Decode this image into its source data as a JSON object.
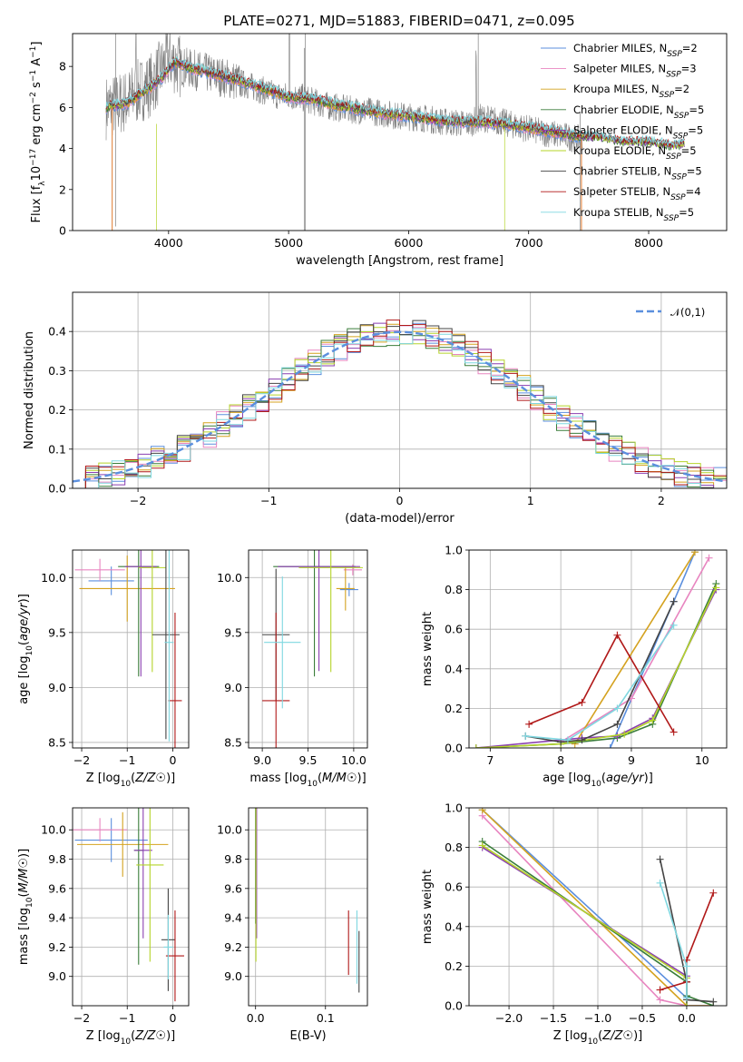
{
  "figure_title": "PLATE=0271, MJD=51883, FIBERID=0471, z=0.095",
  "colors": [
    "#5b8fde",
    "#e885c0",
    "#d4a21f",
    "#3a7d3a",
    "#8a3fb0",
    "#b5d42a",
    "#444444",
    "#b01818",
    "#7fd7e0"
  ],
  "chart_data": [
    {
      "id": "spectrum",
      "type": "line",
      "title": "PLATE=0271, MJD=51883, FIBERID=0471, z=0.095",
      "xlabel": "wavelength [Angstrom, rest frame]",
      "ylabel": "Flux [f_λ 10^-17 erg cm^-2 s^-1 A^-1]",
      "xlim": [
        3200,
        8650
      ],
      "ylim": [
        0,
        9.6
      ],
      "xticks": [
        4000,
        5000,
        6000,
        7000,
        8000
      ],
      "yticks": [
        0,
        2,
        4,
        6,
        8
      ],
      "grid": false,
      "legend_placement": "top-right",
      "legend": [
        "Chabrier MILES, N_SSP=2",
        "Salpeter MILES, N_SSP=3",
        "Kroupa MILES, N_SSP=2",
        "Chabrier ELODIE, N_SSP=5",
        "Salpeter ELODIE, N_SSP=5",
        "Kroupa ELODIE, N_SSP=5",
        "Chabrier STELIB, N_SSP=5",
        "Salpeter STELIB, N_SSP=4",
        "Kroupa STELIB, N_SSP=5"
      ],
      "observed_continuum": {
        "x": [
          3480,
          3550,
          3650,
          3750,
          3850,
          3950,
          4000,
          4100,
          4300,
          4500,
          4700,
          4900,
          5100,
          5300,
          5500,
          5700,
          5900,
          6100,
          6300,
          6500,
          6600,
          6700,
          6900,
          7100,
          7300,
          7450
        ],
        "y": [
          6.0,
          6.1,
          6.3,
          6.8,
          7.1,
          7.9,
          8.4,
          8.0,
          7.7,
          7.4,
          7.0,
          6.6,
          6.5,
          6.1,
          5.9,
          5.8,
          5.6,
          5.5,
          5.3,
          5.2,
          5.5,
          5.4,
          5.1,
          4.8,
          4.6,
          4.4
        ]
      },
      "model_continuum": {
        "x": [
          3480,
          3550,
          3650,
          3750,
          3850,
          3950,
          4050,
          4200,
          4400,
          4600,
          4800,
          5000,
          5200,
          5400,
          5600,
          5800,
          6000,
          6200,
          6400,
          6600,
          6800,
          7000,
          7200,
          7400,
          7600,
          7800,
          8000,
          8200,
          8300
        ],
        "y": [
          6.0,
          6.1,
          6.2,
          6.6,
          7.0,
          7.5,
          8.2,
          7.9,
          7.6,
          7.3,
          6.9,
          6.5,
          6.4,
          6.1,
          5.9,
          5.7,
          5.6,
          5.4,
          5.3,
          5.3,
          5.2,
          5.0,
          4.8,
          4.6,
          4.5,
          4.3,
          4.3,
          4.1,
          4.2
        ]
      }
    },
    {
      "id": "residuals",
      "type": "line",
      "xlabel": "(data-model)/error",
      "ylabel": "Normed distribution",
      "xlim": [
        -2.5,
        2.5
      ],
      "ylim": [
        0,
        0.5
      ],
      "xticks": [
        -2,
        -1,
        0,
        1,
        2
      ],
      "yticks": [
        0.0,
        0.1,
        0.2,
        0.3,
        0.4
      ],
      "grid": true,
      "legend_placement": "top-right",
      "legend": [
        "𝒩(0,1)"
      ],
      "normal_curve": {
        "mean": 0,
        "sd": 1
      },
      "histogram_bin_width": 0.1
    },
    {
      "id": "age_vs_Z",
      "type": "scatter",
      "xlabel": "Z [log10(Z/Z☉)]",
      "ylabel": "age [log10(age/yr)]",
      "xlim": [
        -2.2,
        0.35
      ],
      "ylim": [
        8.45,
        10.25
      ],
      "xticks": [
        -2,
        -1,
        0
      ],
      "yticks": [
        8.5,
        9.0,
        9.5,
        10.0
      ],
      "grid": true,
      "points": [
        {
          "x": -1.35,
          "y": 9.97,
          "xerr": 0.5,
          "yerr": 0.13
        },
        {
          "x": -1.6,
          "y": 10.07,
          "xerr": 0.55,
          "yerr": 0.1
        },
        {
          "x": -1.0,
          "y": 9.9,
          "xerr": 1.05,
          "yerr": 0.3
        },
        {
          "x": -0.75,
          "y": 10.1,
          "xerr": 0.45,
          "yerr": 1.0
        },
        {
          "x": -0.7,
          "y": 10.1,
          "xerr": 0.35,
          "yerr": 1.0
        },
        {
          "x": -0.45,
          "y": 10.09,
          "xerr": 0.3,
          "yerr": 0.95
        },
        {
          "x": -0.15,
          "y": 9.48,
          "xerr": 0.3,
          "yerr": 0.95
        },
        {
          "x": 0.05,
          "y": 8.88,
          "xerr": 0.15,
          "yerr": 0.8
        },
        {
          "x": -0.08,
          "y": 9.41,
          "xerr": 0.1,
          "yerr": 0.9
        }
      ]
    },
    {
      "id": "age_vs_mass",
      "type": "scatter",
      "xlabel": "mass [log10(M/M☉)]",
      "ylabel": "",
      "xlim": [
        8.85,
        10.15
      ],
      "ylim": [
        8.45,
        10.25
      ],
      "xticks": [
        9.0,
        9.5,
        10.0
      ],
      "yticks": [
        8.5,
        9.0,
        9.5,
        10.0
      ],
      "grid": true,
      "points": [
        {
          "x": 9.95,
          "y": 9.89,
          "xerr": 0.1,
          "yerr": 0.06
        },
        {
          "x": 9.99,
          "y": 10.07,
          "xerr": 0.1,
          "yerr": 0.05
        },
        {
          "x": 9.91,
          "y": 9.9,
          "xerr": 0.1,
          "yerr": 0.2
        },
        {
          "x": 9.57,
          "y": 10.1,
          "xerr": 0.45,
          "yerr": 1.0
        },
        {
          "x": 9.62,
          "y": 10.1,
          "xerr": 0.45,
          "yerr": 0.95
        },
        {
          "x": 9.75,
          "y": 10.09,
          "xerr": 0.35,
          "yerr": 0.95
        },
        {
          "x": 9.15,
          "y": 9.48,
          "xerr": 0.15,
          "yerr": 0.6
        },
        {
          "x": 9.15,
          "y": 8.88,
          "xerr": 0.15,
          "yerr": 0.8
        },
        {
          "x": 9.22,
          "y": 9.41,
          "xerr": 0.2,
          "yerr": 0.6
        }
      ]
    },
    {
      "id": "weight_vs_age",
      "type": "line",
      "xlabel": "age [log10(age/yr)]",
      "ylabel": "mass weight",
      "xlim": [
        6.7,
        10.35
      ],
      "ylim": [
        0,
        1.0
      ],
      "xticks": [
        7,
        8,
        9,
        10
      ],
      "yticks": [
        0.0,
        0.2,
        0.4,
        0.6,
        0.8,
        1.0
      ],
      "grid": true,
      "series": [
        {
          "x": [
            8.7,
            9.6,
            9.9
          ],
          "y": [
            0.0,
            0.74,
            0.99
          ]
        },
        {
          "x": [
            8.0,
            9.0,
            10.1
          ],
          "y": [
            0.03,
            0.25,
            0.96
          ]
        },
        {
          "x": [
            8.2,
            9.9
          ],
          "y": [
            0.02,
            0.99
          ]
        },
        {
          "x": [
            6.8,
            8.0,
            8.8,
            9.3,
            10.2
          ],
          "y": [
            0.0,
            0.02,
            0.05,
            0.12,
            0.83
          ]
        },
        {
          "x": [
            6.8,
            8.3,
            8.8,
            9.3,
            10.2
          ],
          "y": [
            0.0,
            0.05,
            0.06,
            0.15,
            0.8
          ]
        },
        {
          "x": [
            6.8,
            8.0,
            8.9,
            9.3,
            10.2
          ],
          "y": [
            0.0,
            0.02,
            0.07,
            0.14,
            0.81
          ]
        },
        {
          "x": [
            7.5,
            8.0,
            8.3,
            8.8,
            9.6
          ],
          "y": [
            0.06,
            0.03,
            0.04,
            0.12,
            0.74
          ]
        },
        {
          "x": [
            7.55,
            8.3,
            8.8,
            9.6
          ],
          "y": [
            0.12,
            0.23,
            0.57,
            0.08
          ]
        },
        {
          "x": [
            7.5,
            8.1,
            8.8,
            9.6
          ],
          "y": [
            0.06,
            0.04,
            0.2,
            0.62
          ]
        }
      ]
    },
    {
      "id": "mass_vs_Z",
      "type": "scatter",
      "xlabel": "Z [log10(Z/Z☉)]",
      "ylabel": "mass [log10(M/M☉)]",
      "xlim": [
        -2.2,
        0.35
      ],
      "ylim": [
        8.8,
        10.15
      ],
      "xticks": [
        -2,
        -1,
        0
      ],
      "yticks": [
        9.0,
        9.2,
        9.4,
        9.6,
        9.8,
        10.0
      ],
      "grid": true,
      "points": [
        {
          "x": -1.35,
          "y": 9.93,
          "xerr": 0.8,
          "yerr": 0.15
        },
        {
          "x": -1.6,
          "y": 10.0,
          "xerr": 0.6,
          "yerr": 0.08
        },
        {
          "x": -1.1,
          "y": 9.9,
          "xerr": 1.0,
          "yerr": 0.22
        },
        {
          "x": -0.75,
          "y": 9.86,
          "xerr": 0.1,
          "yerr": 0.78
        },
        {
          "x": -0.65,
          "y": 9.86,
          "xerr": 0.2,
          "yerr": 0.6
        },
        {
          "x": -0.5,
          "y": 9.76,
          "xerr": 0.3,
          "yerr": 0.66
        },
        {
          "x": -0.1,
          "y": 9.25,
          "xerr": 0.15,
          "yerr": 0.35
        },
        {
          "x": 0.05,
          "y": 9.14,
          "xerr": 0.2,
          "yerr": 0.31
        },
        {
          "x": -0.1,
          "y": 9.2,
          "xerr": 0.1,
          "yerr": 0.22
        }
      ]
    },
    {
      "id": "mass_vs_EBV",
      "type": "scatter",
      "xlabel": "E(B-V)",
      "ylabel": "",
      "xlim": [
        -0.01,
        0.16
      ],
      "ylim": [
        8.8,
        10.15
      ],
      "xticks": [
        0.0,
        0.1
      ],
      "yticks": [
        9.0,
        9.2,
        9.4,
        9.6,
        9.8,
        10.0
      ],
      "grid": true,
      "points": [
        {
          "x": 0.001,
          "y": 9.93,
          "xerr": 0,
          "yerr": 0.15
        },
        {
          "x": 0.001,
          "y": 10.0,
          "xerr": 0,
          "yerr": 0.08
        },
        {
          "x": 0.001,
          "y": 9.9,
          "xerr": 0,
          "yerr": 0.15
        },
        {
          "x": 0.0,
          "y": 9.86,
          "xerr": 0,
          "yerr": 0.5
        },
        {
          "x": 0.0015,
          "y": 9.86,
          "xerr": 0,
          "yerr": 0.6
        },
        {
          "x": 0.0005,
          "y": 9.76,
          "xerr": 0,
          "yerr": 0.66
        },
        {
          "x": 0.148,
          "y": 9.1,
          "xerr": 0,
          "yerr": 0.21
        },
        {
          "x": 0.133,
          "y": 9.23,
          "xerr": 0,
          "yerr": 0.22
        },
        {
          "x": 0.145,
          "y": 9.2,
          "xerr": 0,
          "yerr": 0.25
        }
      ]
    },
    {
      "id": "weight_vs_Z",
      "type": "line",
      "xlabel": "Z [log10(Z/Z☉)]",
      "ylabel": "mass weight",
      "xlim": [
        -2.45,
        0.45
      ],
      "ylim": [
        0,
        1.0
      ],
      "xticks": [
        -2.0,
        -1.5,
        -1.0,
        -0.5,
        0.0
      ],
      "yticks": [
        0.0,
        0.2,
        0.4,
        0.6,
        0.8,
        1.0
      ],
      "grid": true,
      "series": [
        {
          "x": [
            -2.3,
            0.0,
            0.0
          ],
          "y": [
            0.99,
            0.04,
            0.0
          ]
        },
        {
          "x": [
            -2.3,
            -0.3,
            0.0,
            0.3
          ],
          "y": [
            0.96,
            0.03,
            0.0,
            0.0
          ]
        },
        {
          "x": [
            -2.3,
            0.0,
            0.3
          ],
          "y": [
            0.99,
            0.0,
            0.0
          ]
        },
        {
          "x": [
            -2.3,
            0.0,
            0.0,
            0.3
          ],
          "y": [
            0.83,
            0.12,
            0.05,
            0.0
          ]
        },
        {
          "x": [
            -2.3,
            0.0,
            0.0
          ],
          "y": [
            0.8,
            0.15,
            0.0
          ]
        },
        {
          "x": [
            -2.3,
            0.0,
            0.0
          ],
          "y": [
            0.81,
            0.14,
            0.0
          ]
        },
        {
          "x": [
            -0.3,
            0.0,
            0.0,
            0.3
          ],
          "y": [
            0.74,
            0.12,
            0.03,
            0.02
          ]
        },
        {
          "x": [
            -0.3,
            0.0,
            0.0,
            0.3
          ],
          "y": [
            0.08,
            0.12,
            0.23,
            0.57
          ]
        },
        {
          "x": [
            -0.3,
            0.0,
            0.0
          ],
          "y": [
            0.62,
            0.2,
            0.04
          ]
        }
      ]
    }
  ]
}
